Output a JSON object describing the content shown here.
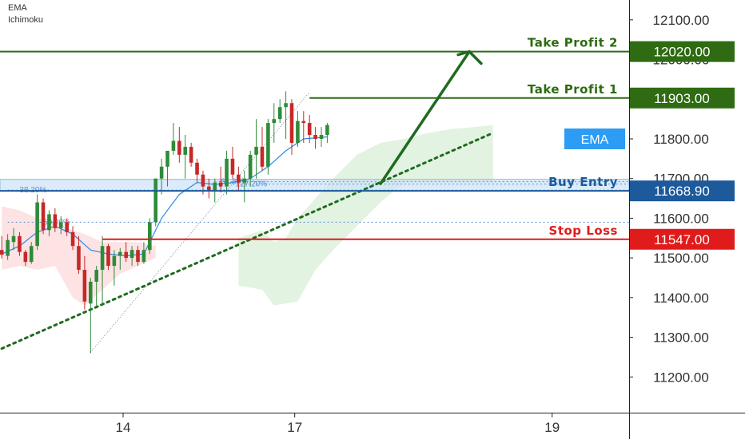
{
  "indicators": [
    "EMA",
    "Ichimoku"
  ],
  "colors": {
    "bull": "#2e8b3a",
    "bear": "#c62828",
    "ema": "#2a8be6",
    "take_profit": "#2e6b12",
    "stop_loss": "#e01b1b",
    "buy_entry": "#1c5a9c",
    "ema_badge": "#2d9cf5",
    "cloud_bear": "#fde3e3",
    "cloud_bull": "#e3f3e1",
    "trendline": "#1f6b1f",
    "axis_text": "#333333"
  },
  "chart_data": {
    "type": "candlestick",
    "title": "",
    "ylim": [
      11110,
      12150
    ],
    "y_ticks": [
      12100,
      12000,
      11900,
      11800,
      11700,
      11600,
      11500,
      11400,
      11300,
      11200
    ],
    "y_tick_labels": [
      "12100.00",
      "12000.00",
      "11900.00",
      "11800.00",
      "11700.00",
      "11600.00",
      "11500.00",
      "11400.00",
      "11300.00",
      "11200.00"
    ],
    "x_tick_labels": [
      {
        "label": "14",
        "index": 20.5
      },
      {
        "label": "17",
        "index": 49.5
      },
      {
        "label": "19",
        "index": 93
      }
    ],
    "x_range": [
      -0.3,
      106
    ],
    "levels": [
      {
        "name": "Take Profit 2",
        "value": 12020,
        "label": "12020.00",
        "kind": "take_profit",
        "start_index": -1
      },
      {
        "name": "Take Profit 1",
        "value": 11903,
        "label": "11903.00",
        "kind": "take_profit",
        "start_index": 52
      },
      {
        "name": "Buy Entry",
        "value": 11668.9,
        "label": "11668.90",
        "kind": "buy_entry",
        "start_index": -1
      },
      {
        "name": "Stop Loss",
        "value": 11547,
        "label": "11547.00",
        "kind": "stop_loss",
        "start_index": 17
      }
    ],
    "ema_badge": {
      "label": "EMA",
      "value": 11800
    },
    "buy_zone": [
      11669,
      11698
    ],
    "fib_levels": [
      {
        "label": "38.20%",
        "value": 11671,
        "start_index": 1,
        "label_index": 3
      },
      {
        "label": "50.00%",
        "value": 11590,
        "start_index": 1,
        "label_index": 7
      },
      {
        "label": "61.80%",
        "value": 11692,
        "start_index": 36,
        "label_index": 37
      },
      {
        "label": "127.20%",
        "value": 11686,
        "start_index": 39,
        "label_index": 39.5
      }
    ],
    "trendline": [
      {
        "index": -1,
        "value": 11265
      },
      {
        "index": 83,
        "value": 11815
      }
    ],
    "projection_arrow": [
      {
        "index": 64,
        "value": 11687
      },
      {
        "index": 79,
        "value": 12020
      },
      {
        "index": 81,
        "value": 11990
      }
    ],
    "fib_diagonal": [
      {
        "index": 15,
        "value": 11262
      },
      {
        "index": 52,
        "value": 11918
      }
    ],
    "ichimoku_bear": [
      [
        0,
        11630,
        11470
      ],
      [
        3,
        11620,
        11480
      ],
      [
        6,
        11600,
        11470
      ],
      [
        9,
        11590,
        11480
      ],
      [
        12,
        11570,
        11400
      ],
      [
        14,
        11560,
        11380
      ],
      [
        17,
        11540,
        11420
      ],
      [
        20,
        11540,
        11460
      ],
      [
        23,
        11540,
        11480
      ],
      [
        26,
        11530,
        11500
      ]
    ],
    "ichimoku_bull": [
      [
        40,
        11550,
        11430
      ],
      [
        44,
        11570,
        11420
      ],
      [
        46,
        11540,
        11380
      ],
      [
        48,
        11550,
        11385
      ],
      [
        50,
        11600,
        11390
      ],
      [
        53,
        11650,
        11470
      ],
      [
        56,
        11700,
        11520
      ],
      [
        60,
        11760,
        11580
      ],
      [
        64,
        11790,
        11640
      ],
      [
        68,
        11800,
        11690
      ],
      [
        72,
        11815,
        11690
      ],
      [
        76,
        11825,
        11690
      ],
      [
        80,
        11830,
        11690
      ],
      [
        83,
        11835,
        11690
      ]
    ],
    "candles": [
      [
        11520,
        11555,
        11498,
        11508
      ],
      [
        11505,
        11560,
        11495,
        11545
      ],
      [
        11540,
        11575,
        11520,
        11555
      ],
      [
        11555,
        11565,
        11505,
        11515
      ],
      [
        11515,
        11520,
        11480,
        11490
      ],
      [
        11490,
        11540,
        11485,
        11530
      ],
      [
        11530,
        11660,
        11520,
        11640
      ],
      [
        11640,
        11650,
        11560,
        11570
      ],
      [
        11570,
        11620,
        11555,
        11610
      ],
      [
        11610,
        11625,
        11565,
        11575
      ],
      [
        11575,
        11605,
        11560,
        11590
      ],
      [
        11590,
        11600,
        11555,
        11565
      ],
      [
        11565,
        11580,
        11520,
        11530
      ],
      [
        11530,
        11555,
        11460,
        11470
      ],
      [
        11470,
        11505,
        11370,
        11390
      ],
      [
        11385,
        11450,
        11260,
        11440
      ],
      [
        11440,
        11480,
        11380,
        11470
      ],
      [
        11470,
        11555,
        11380,
        11530
      ],
      [
        11530,
        11535,
        11470,
        11480
      ],
      [
        11480,
        11520,
        11430,
        11505
      ],
      [
        11505,
        11525,
        11470,
        11515
      ],
      [
        11515,
        11540,
        11490,
        11500
      ],
      [
        11500,
        11530,
        11480,
        11520
      ],
      [
        11520,
        11530,
        11480,
        11490
      ],
      [
        11490,
        11540,
        11485,
        11520
      ],
      [
        11520,
        11600,
        11510,
        11590
      ],
      [
        11590,
        11700,
        11580,
        11700
      ],
      [
        11700,
        11750,
        11660,
        11730
      ],
      [
        11730,
        11760,
        11680,
        11770
      ],
      [
        11770,
        11840,
        11760,
        11795
      ],
      [
        11795,
        11830,
        11740,
        11760
      ],
      [
        11760,
        11810,
        11700,
        11780
      ],
      [
        11780,
        11790,
        11730,
        11740
      ],
      [
        11740,
        11750,
        11690,
        11710
      ],
      [
        11710,
        11720,
        11660,
        11680
      ],
      [
        11680,
        11700,
        11650,
        11670
      ],
      [
        11670,
        11700,
        11640,
        11690
      ],
      [
        11690,
        11730,
        11665,
        11680
      ],
      [
        11680,
        11770,
        11660,
        11750
      ],
      [
        11750,
        11780,
        11700,
        11710
      ],
      [
        11710,
        11730,
        11670,
        11690
      ],
      [
        11690,
        11720,
        11640,
        11700
      ],
      [
        11700,
        11770,
        11680,
        11760
      ],
      [
        11760,
        11850,
        11700,
        11780
      ],
      [
        11780,
        11830,
        11720,
        11730
      ],
      [
        11730,
        11850,
        11710,
        11840
      ],
      [
        11840,
        11890,
        11790,
        11850
      ],
      [
        11850,
        11900,
        11840,
        11880
      ],
      [
        11880,
        11920,
        11800,
        11890
      ],
      [
        11890,
        11900,
        11760,
        11790
      ],
      [
        11790,
        11870,
        11780,
        11845
      ],
      [
        11845,
        11870,
        11790,
        11840
      ],
      [
        11840,
        11860,
        11790,
        11810
      ],
      [
        11810,
        11830,
        11775,
        11800
      ],
      [
        11800,
        11830,
        11780,
        11810
      ],
      [
        11810,
        11840,
        11790,
        11835
      ]
    ],
    "ema": [
      [
        0,
        11510
      ],
      [
        3,
        11530
      ],
      [
        6,
        11565
      ],
      [
        9,
        11580
      ],
      [
        12,
        11560
      ],
      [
        15,
        11520
      ],
      [
        18,
        11510
      ],
      [
        21,
        11505
      ],
      [
        24,
        11510
      ],
      [
        27,
        11600
      ],
      [
        30,
        11660
      ],
      [
        33,
        11690
      ],
      [
        36,
        11685
      ],
      [
        39,
        11690
      ],
      [
        42,
        11700
      ],
      [
        45,
        11730
      ],
      [
        48,
        11770
      ],
      [
        51,
        11800
      ],
      [
        55,
        11805
      ]
    ]
  }
}
